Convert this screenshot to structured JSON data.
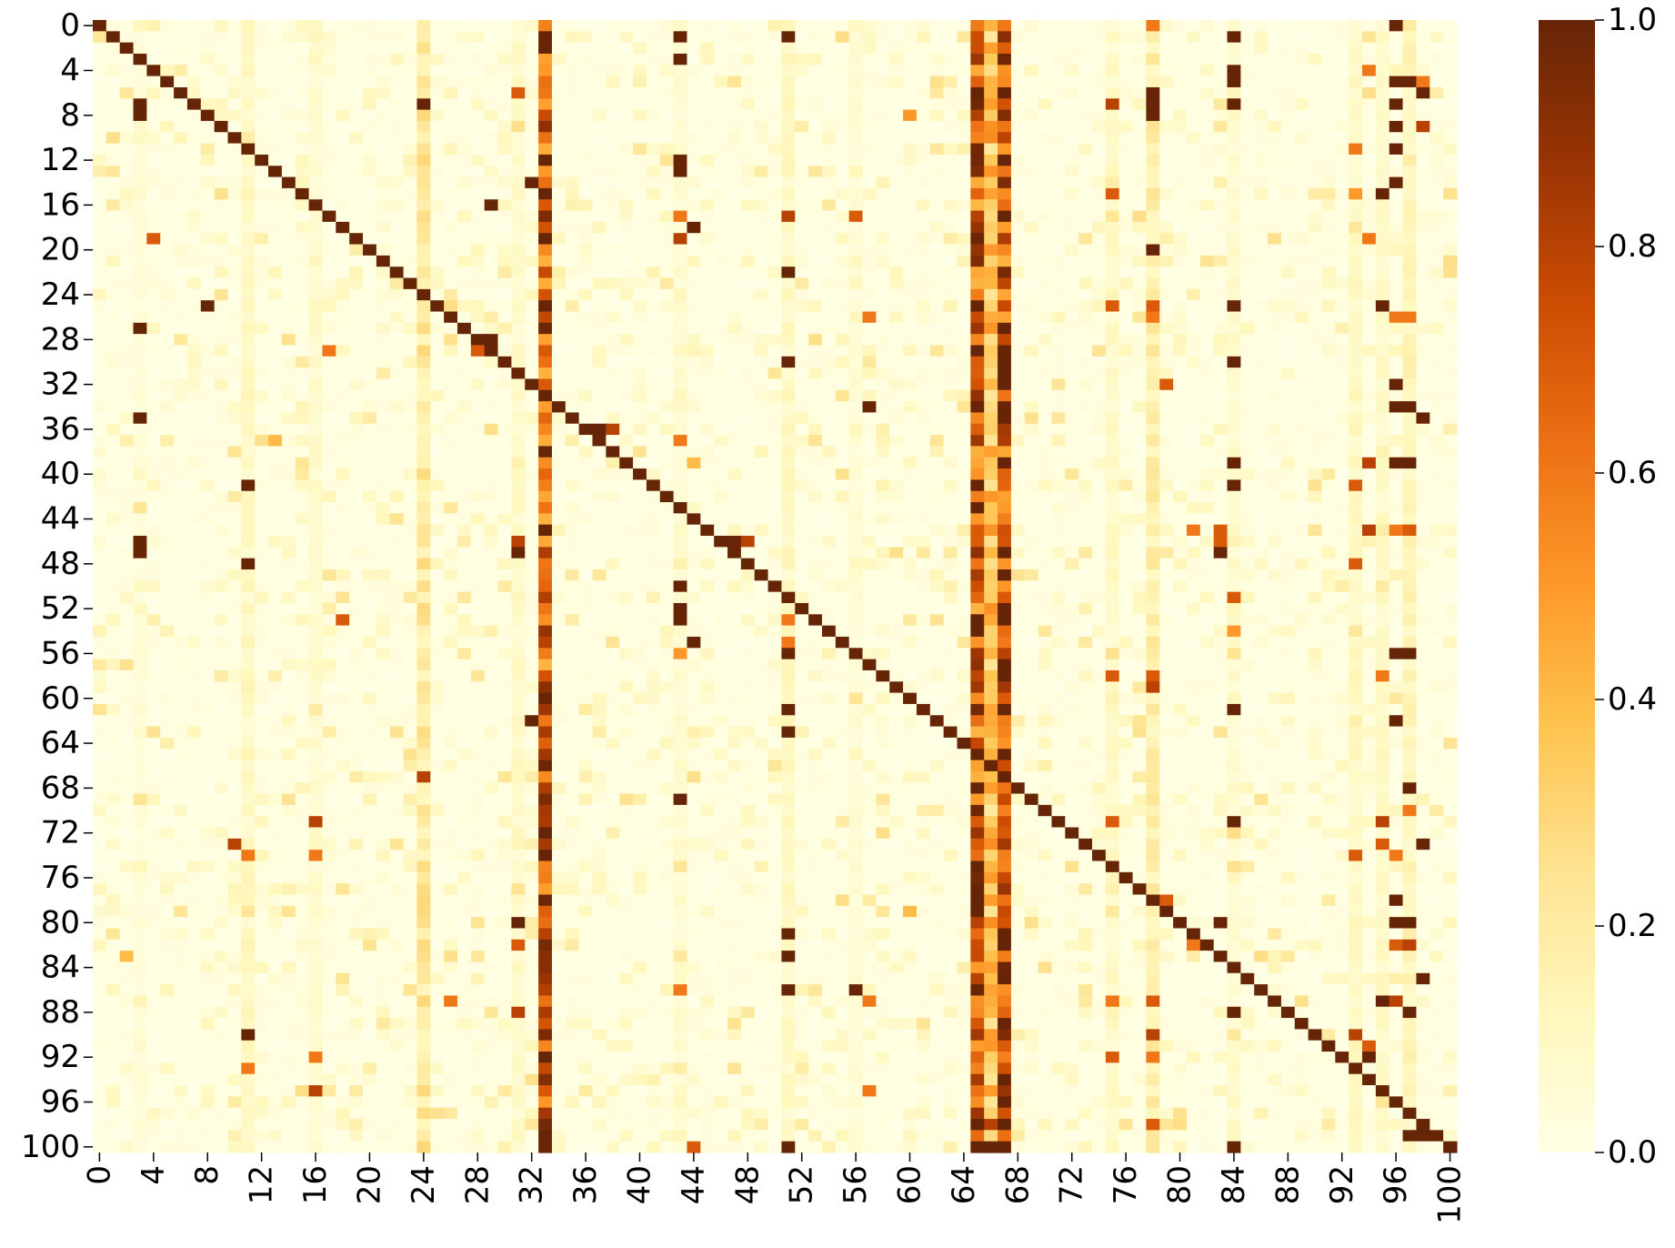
{
  "chart_data": {
    "type": "heatmap",
    "title": "",
    "xlabel": "",
    "ylabel": "",
    "n_rows": 101,
    "n_cols": 101,
    "x_tick_labels": [
      "0",
      "4",
      "8",
      "12",
      "16",
      "20",
      "24",
      "28",
      "32",
      "36",
      "40",
      "44",
      "48",
      "52",
      "56",
      "60",
      "64",
      "68",
      "72",
      "76",
      "80",
      "84",
      "88",
      "92",
      "96",
      "100"
    ],
    "y_tick_labels": [
      "0",
      "4",
      "8",
      "12",
      "16",
      "20",
      "24",
      "28",
      "32",
      "36",
      "40",
      "44",
      "48",
      "52",
      "56",
      "60",
      "64",
      "68",
      "72",
      "76",
      "80",
      "84",
      "88",
      "92",
      "96",
      "100"
    ],
    "value_range": [
      0.0,
      1.0
    ],
    "colorbar_ticks": [
      "0.0",
      "0.2",
      "0.4",
      "0.6",
      "0.8",
      "1.0"
    ],
    "colormap": "YlOrBr",
    "colormap_stops": [
      "#ffffe5",
      "#fff7bc",
      "#fee391",
      "#fec44f",
      "#fe9929",
      "#ec7014",
      "#cc4c02",
      "#993404",
      "#662506"
    ],
    "diagonal_value": 1.0,
    "column_strengths": [
      {
        "col": 3,
        "value": 0.05
      },
      {
        "col": 11,
        "value": 0.12
      },
      {
        "col": 16,
        "value": 0.08
      },
      {
        "col": 24,
        "value": 0.25
      },
      {
        "col": 31,
        "value": 0.1
      },
      {
        "col": 33,
        "value": 0.9
      },
      {
        "col": 43,
        "value": 0.08
      },
      {
        "col": 51,
        "value": 0.12
      },
      {
        "col": 56,
        "value": 0.06
      },
      {
        "col": 65,
        "value": 0.9
      },
      {
        "col": 66,
        "value": 0.45
      },
      {
        "col": 67,
        "value": 0.95
      },
      {
        "col": 75,
        "value": 0.1
      },
      {
        "col": 78,
        "value": 0.2
      },
      {
        "col": 84,
        "value": 0.08
      },
      {
        "col": 93,
        "value": 0.12
      },
      {
        "col": 95,
        "value": 0.1
      },
      {
        "col": 97,
        "value": 0.15
      }
    ],
    "cells": [
      [
        0,
        96,
        1.0
      ],
      [
        0,
        78,
        0.6
      ],
      [
        0,
        97,
        0.2
      ],
      [
        1,
        43,
        1.0
      ],
      [
        1,
        51,
        1.0
      ],
      [
        1,
        84,
        1.0
      ],
      [
        3,
        43,
        1.0
      ],
      [
        4,
        84,
        1.0
      ],
      [
        4,
        94,
        0.6
      ],
      [
        5,
        84,
        1.0
      ],
      [
        5,
        96,
        1.0
      ],
      [
        5,
        97,
        1.0
      ],
      [
        5,
        98,
        0.6
      ],
      [
        6,
        31,
        0.7
      ],
      [
        6,
        78,
        1.0
      ],
      [
        6,
        98,
        1.0
      ],
      [
        7,
        3,
        1.0
      ],
      [
        7,
        24,
        1.0
      ],
      [
        7,
        75,
        0.8
      ],
      [
        7,
        84,
        1.0
      ],
      [
        7,
        96,
        1.0
      ],
      [
        7,
        78,
        1.0
      ],
      [
        8,
        3,
        1.0
      ],
      [
        8,
        60,
        0.5
      ],
      [
        8,
        78,
        1.0
      ],
      [
        9,
        96,
        1.0
      ],
      [
        9,
        98,
        0.8
      ],
      [
        11,
        93,
        0.6
      ],
      [
        11,
        96,
        1.0
      ],
      [
        12,
        43,
        1.0
      ],
      [
        13,
        43,
        1.0
      ],
      [
        14,
        32,
        1.0
      ],
      [
        14,
        96,
        1.0
      ],
      [
        15,
        75,
        0.7
      ],
      [
        15,
        93,
        0.5
      ],
      [
        15,
        95,
        1.0
      ],
      [
        16,
        29,
        1.0
      ],
      [
        17,
        43,
        0.6
      ],
      [
        17,
        51,
        0.8
      ],
      [
        17,
        56,
        0.7
      ],
      [
        18,
        44,
        1.0
      ],
      [
        19,
        4,
        0.7
      ],
      [
        19,
        43,
        0.8
      ],
      [
        19,
        94,
        0.6
      ],
      [
        20,
        78,
        1.0
      ],
      [
        22,
        51,
        1.0
      ],
      [
        25,
        8,
        1.0
      ],
      [
        25,
        75,
        0.7
      ],
      [
        25,
        78,
        0.7
      ],
      [
        25,
        84,
        1.0
      ],
      [
        25,
        95,
        1.0
      ],
      [
        26,
        57,
        0.6
      ],
      [
        26,
        78,
        0.6
      ],
      [
        26,
        96,
        0.6
      ],
      [
        26,
        97,
        0.6
      ],
      [
        27,
        3,
        1.0
      ],
      [
        28,
        28,
        1.0
      ],
      [
        28,
        29,
        1.0
      ],
      [
        29,
        17,
        0.6
      ],
      [
        29,
        28,
        0.7
      ],
      [
        30,
        51,
        1.0
      ],
      [
        30,
        84,
        1.0
      ],
      [
        32,
        79,
        0.7
      ],
      [
        32,
        96,
        1.0
      ],
      [
        34,
        57,
        1.0
      ],
      [
        34,
        96,
        1.0
      ],
      [
        34,
        97,
        1.0
      ],
      [
        35,
        3,
        1.0
      ],
      [
        35,
        98,
        1.0
      ],
      [
        36,
        37,
        1.0
      ],
      [
        36,
        38,
        0.8
      ],
      [
        37,
        13,
        0.4
      ],
      [
        37,
        43,
        0.6
      ],
      [
        37,
        37,
        1.0
      ],
      [
        39,
        44,
        0.4
      ],
      [
        39,
        84,
        1.0
      ],
      [
        39,
        94,
        0.8
      ],
      [
        39,
        96,
        1.0
      ],
      [
        39,
        97,
        1.0
      ],
      [
        41,
        11,
        1.0
      ],
      [
        41,
        84,
        1.0
      ],
      [
        41,
        93,
        0.7
      ],
      [
        45,
        81,
        0.6
      ],
      [
        45,
        83,
        0.7
      ],
      [
        45,
        94,
        0.8
      ],
      [
        45,
        96,
        0.6
      ],
      [
        45,
        97,
        0.7
      ],
      [
        46,
        3,
        1.0
      ],
      [
        46,
        31,
        0.8
      ],
      [
        46,
        47,
        1.0
      ],
      [
        46,
        48,
        0.8
      ],
      [
        46,
        83,
        0.7
      ],
      [
        47,
        3,
        1.0
      ],
      [
        47,
        31,
        1.0
      ],
      [
        47,
        83,
        1.0
      ],
      [
        48,
        11,
        1.0
      ],
      [
        48,
        93,
        0.7
      ],
      [
        50,
        43,
        1.0
      ],
      [
        51,
        84,
        0.7
      ],
      [
        52,
        43,
        1.0
      ],
      [
        53,
        18,
        0.7
      ],
      [
        53,
        43,
        1.0
      ],
      [
        53,
        51,
        0.6
      ],
      [
        54,
        84,
        0.5
      ],
      [
        55,
        44,
        1.0
      ],
      [
        55,
        51,
        0.6
      ],
      [
        56,
        51,
        1.0
      ],
      [
        56,
        43,
        0.5
      ],
      [
        56,
        96,
        1.0
      ],
      [
        56,
        97,
        1.0
      ],
      [
        58,
        75,
        0.7
      ],
      [
        58,
        78,
        0.7
      ],
      [
        58,
        95,
        0.6
      ],
      [
        59,
        78,
        0.8
      ],
      [
        61,
        51,
        1.0
      ],
      [
        61,
        84,
        1.0
      ],
      [
        62,
        32,
        1.0
      ],
      [
        62,
        96,
        1.0
      ],
      [
        63,
        51,
        1.0
      ],
      [
        67,
        24,
        0.8
      ],
      [
        68,
        97,
        1.0
      ],
      [
        69,
        43,
        1.0
      ],
      [
        70,
        97,
        0.6
      ],
      [
        71,
        16,
        0.8
      ],
      [
        71,
        75,
        0.7
      ],
      [
        71,
        84,
        1.0
      ],
      [
        71,
        95,
        0.8
      ],
      [
        73,
        10,
        0.8
      ],
      [
        73,
        95,
        0.7
      ],
      [
        73,
        98,
        1.0
      ],
      [
        74,
        11,
        0.6
      ],
      [
        74,
        16,
        0.6
      ],
      [
        74,
        93,
        0.7
      ],
      [
        74,
        96,
        0.6
      ],
      [
        78,
        79,
        0.7
      ],
      [
        78,
        96,
        1.0
      ],
      [
        79,
        60,
        0.4
      ],
      [
        80,
        31,
        1.0
      ],
      [
        80,
        83,
        1.0
      ],
      [
        80,
        96,
        1.0
      ],
      [
        80,
        97,
        1.0
      ],
      [
        81,
        51,
        1.0
      ],
      [
        82,
        31,
        0.7
      ],
      [
        82,
        81,
        0.6
      ],
      [
        82,
        96,
        0.7
      ],
      [
        82,
        97,
        0.8
      ],
      [
        83,
        2,
        0.4
      ],
      [
        83,
        51,
        1.0
      ],
      [
        85,
        98,
        1.0
      ],
      [
        86,
        43,
        0.6
      ],
      [
        86,
        51,
        1.0
      ],
      [
        86,
        56,
        1.0
      ],
      [
        87,
        26,
        0.6
      ],
      [
        87,
        57,
        0.6
      ],
      [
        87,
        75,
        0.6
      ],
      [
        87,
        78,
        0.7
      ],
      [
        87,
        95,
        1.0
      ],
      [
        87,
        96,
        0.8
      ],
      [
        88,
        31,
        0.8
      ],
      [
        88,
        84,
        1.0
      ],
      [
        88,
        97,
        1.0
      ],
      [
        90,
        11,
        1.0
      ],
      [
        90,
        93,
        0.8
      ],
      [
        90,
        78,
        0.8
      ],
      [
        91,
        94,
        0.7
      ],
      [
        92,
        16,
        0.6
      ],
      [
        92,
        75,
        0.7
      ],
      [
        92,
        78,
        0.6
      ],
      [
        92,
        94,
        1.0
      ],
      [
        93,
        11,
        0.6
      ],
      [
        95,
        16,
        0.8
      ],
      [
        95,
        57,
        0.6
      ],
      [
        98,
        65,
        1.0
      ],
      [
        98,
        66,
        0.8
      ],
      [
        98,
        67,
        1.0
      ],
      [
        98,
        78,
        0.7
      ],
      [
        99,
        97,
        1.0
      ],
      [
        99,
        98,
        1.0
      ],
      [
        100,
        44,
        0.7
      ],
      [
        100,
        51,
        1.0
      ],
      [
        100,
        84,
        1.0
      ],
      [
        100,
        66,
        1.0
      ],
      [
        100,
        67,
        1.0
      ],
      [
        100,
        65,
        1.0
      ]
    ]
  }
}
